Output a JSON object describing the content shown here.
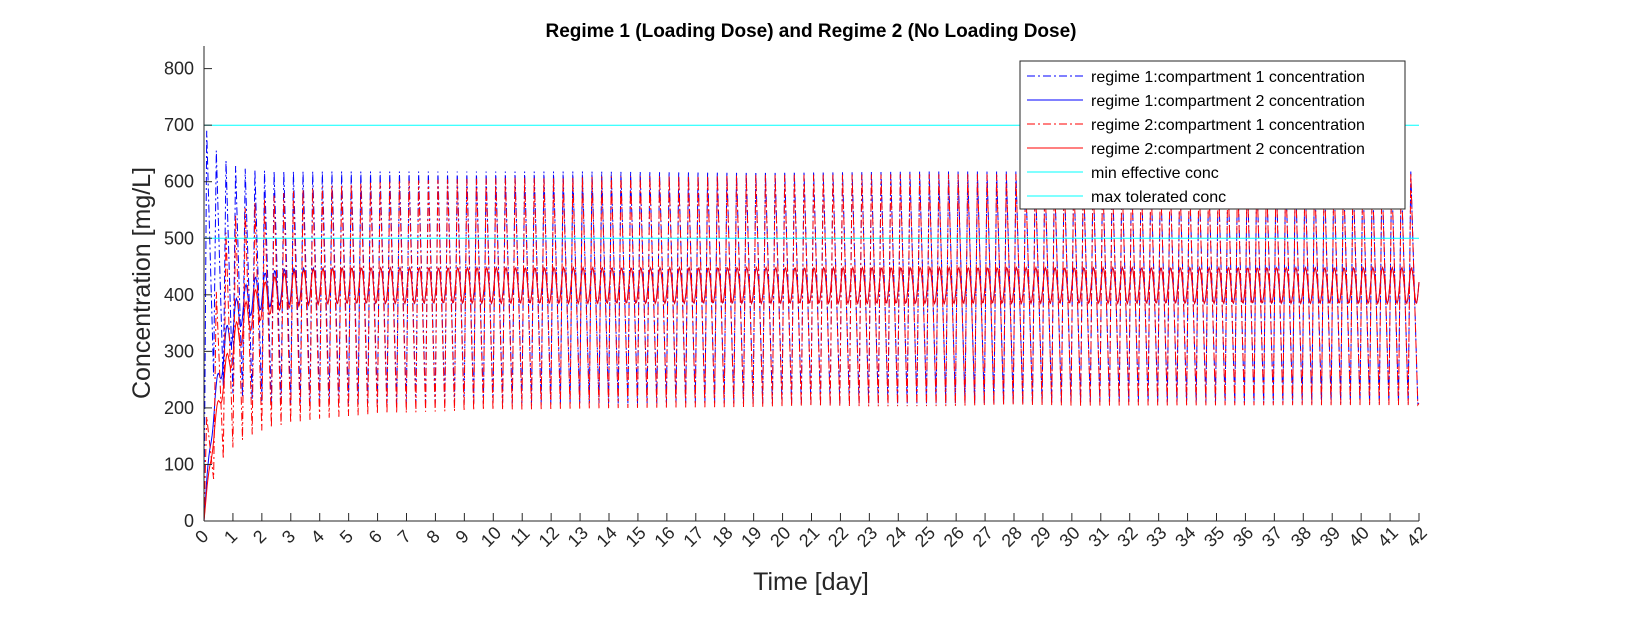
{
  "chart_data": {
    "type": "line",
    "title": "Regime 1 (Loading Dose) and Regime 2 (No Loading Dose)",
    "xlabel": "Time [day]",
    "ylabel": "Concentration [mg/L]",
    "xlim": [
      0,
      42
    ],
    "ylim": [
      0,
      840
    ],
    "x_ticks": [
      0,
      1,
      2,
      3,
      4,
      5,
      6,
      7,
      8,
      9,
      10,
      11,
      12,
      13,
      14,
      15,
      16,
      17,
      18,
      19,
      20,
      21,
      22,
      23,
      24,
      25,
      26,
      27,
      28,
      29,
      30,
      31,
      32,
      33,
      34,
      35,
      36,
      37,
      38,
      39,
      40,
      41,
      42
    ],
    "y_ticks": [
      0,
      100,
      200,
      300,
      400,
      500,
      600,
      700,
      800
    ],
    "grid": false,
    "legend_position": "top-right",
    "dosing_interval_day": 0.333,
    "series": [
      {
        "name": "regime 1:compartment 1 concentration",
        "color": "#0000ff",
        "style": "dashdot",
        "steady_min": 208,
        "steady_max": 618,
        "initial_peak": 690
      },
      {
        "name": "regime 1:compartment 2 concentration",
        "color": "#0000ff",
        "style": "solid",
        "steady_min": 385,
        "steady_max": 448,
        "initial_peak": 440
      },
      {
        "name": "regime 2:compartment 1 concentration",
        "color": "#ff0000",
        "style": "dashdot",
        "steady_min": 208,
        "steady_max": 618,
        "initial_peak": 0
      },
      {
        "name": "regime 2:compartment 2 concentration",
        "color": "#ff0000",
        "style": "solid",
        "steady_min": 385,
        "steady_max": 448,
        "initial_peak": 0
      },
      {
        "name": "min effective conc",
        "color": "#00ffff",
        "style": "solid",
        "value": 500
      },
      {
        "name": "max tolerated conc",
        "color": "#00ffff",
        "style": "solid",
        "value": 700
      }
    ]
  }
}
